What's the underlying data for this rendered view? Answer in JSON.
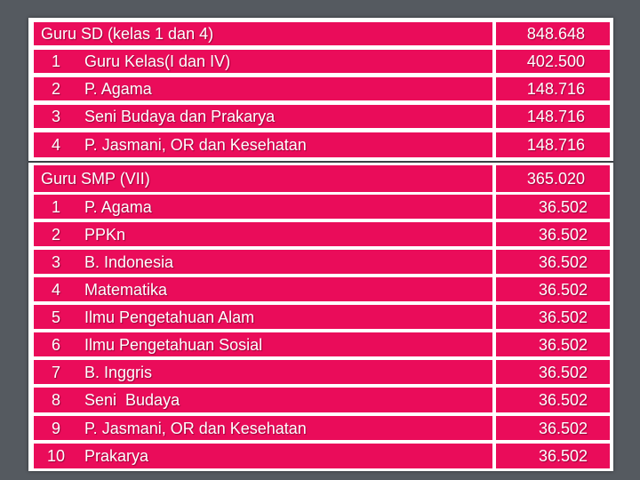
{
  "sections": [
    {
      "title": "Guru SD (kelas 1 dan 4)",
      "total": "848.648",
      "rows": [
        {
          "no": "1",
          "label": "Guru Kelas(I dan IV)",
          "value": "402.500"
        },
        {
          "no": "2",
          "label": "P. Agama",
          "value": "148.716"
        },
        {
          "no": "3",
          "label": "Seni Budaya dan Prakarya",
          "value": "148.716"
        },
        {
          "no": "4",
          "label": "P. Jasmani, OR dan Kesehatan",
          "value": "148.716"
        }
      ]
    },
    {
      "title": "Guru SMP (VII)",
      "total": "365.020",
      "rows": [
        {
          "no": "1",
          "label": "P. Agama",
          "value": "36.502"
        },
        {
          "no": "2",
          "label": "PPKn",
          "value": "36.502"
        },
        {
          "no": "3",
          "label": "B. Indonesia",
          "value": "36.502"
        },
        {
          "no": "4",
          "label": "Matematika",
          "value": "36.502"
        },
        {
          "no": "5",
          "label": "Ilmu Pengetahuan Alam",
          "value": "36.502"
        },
        {
          "no": "6",
          "label": "Ilmu Pengetahuan Sosial",
          "value": "36.502"
        },
        {
          "no": "7",
          "label": "B. Inggris",
          "value": "36.502"
        },
        {
          "no": "8",
          "label": "Seni  Budaya",
          "value": "36.502"
        },
        {
          "no": "9",
          "label": "P. Jasmani, OR dan Kesehatan",
          "value": "36.502"
        },
        {
          "no": "10",
          "label": "Prakarya",
          "value": "36.502"
        }
      ]
    }
  ],
  "colors": {
    "cell_background": "#ea0c5a",
    "cell_text": "#ffffff",
    "frame_background": "#555a60"
  }
}
